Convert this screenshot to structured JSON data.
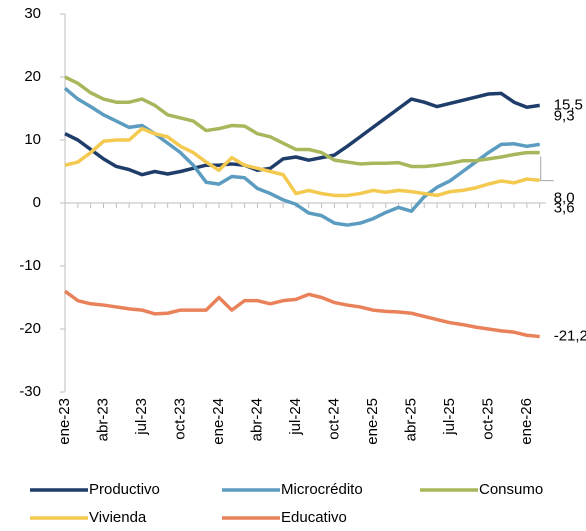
{
  "chart_data": {
    "type": "line",
    "categories": [
      "ene-23",
      null,
      null,
      "abr-23",
      null,
      null,
      "jul-23",
      null,
      null,
      "oct-23",
      null,
      null,
      "ene-24",
      null,
      null,
      "abr-24",
      null,
      null,
      "jul-24",
      null,
      null,
      "oct-24",
      null,
      null,
      "ene-25",
      null,
      null,
      "abr-25",
      null,
      null,
      "jul-25",
      null,
      null,
      "oct-25",
      null,
      null,
      "ene-26",
      null
    ],
    "ylim": [
      -30,
      30
    ],
    "yticks": [
      -30,
      -20,
      -10,
      0,
      10,
      20,
      30
    ],
    "series": [
      {
        "name": "Productivo",
        "color": "#1f3d6b",
        "values": [
          11,
          10,
          8.5,
          7,
          5.8,
          5.3,
          4.5,
          5,
          4.6,
          5,
          5.5,
          6,
          6,
          6.2,
          6,
          5.2,
          5.5,
          7,
          7.3,
          6.8,
          7.2,
          7.6,
          9,
          10.5,
          12,
          13.5,
          15,
          16.5,
          16,
          15.3,
          15.8,
          16.3,
          16.8,
          17.3,
          17.4,
          16,
          15.2,
          15.5
        ],
        "value_labels": [
          null,
          null,
          null,
          null,
          null,
          null,
          null,
          null,
          null,
          null,
          null,
          null,
          null,
          null,
          null,
          null,
          null,
          null,
          null,
          null,
          null,
          null,
          null,
          null,
          null,
          null,
          null,
          null,
          null,
          null,
          null,
          null,
          null,
          null,
          null,
          null,
          null,
          "15,5"
        ]
      },
      {
        "name": "Microcrédito",
        "color": "#5b9cc0",
        "values": [
          18.2,
          16.5,
          15.3,
          14,
          13,
          12,
          12.3,
          11,
          9.5,
          8,
          6,
          3.3,
          3,
          4.2,
          4,
          2.3,
          1.5,
          0.5,
          -0.2,
          -1.6,
          -2,
          -3.2,
          -3.5,
          -3.2,
          -2.5,
          -1.5,
          -0.7,
          -1.3,
          1,
          2.5,
          3.5,
          5,
          6.5,
          8,
          9.3,
          9.4,
          9,
          9.3
        ],
        "value_labels": [
          null,
          null,
          null,
          null,
          null,
          null,
          null,
          null,
          null,
          null,
          null,
          null,
          null,
          null,
          null,
          null,
          null,
          null,
          null,
          null,
          null,
          null,
          null,
          null,
          null,
          null,
          null,
          null,
          null,
          null,
          null,
          null,
          null,
          null,
          null,
          null,
          null,
          "9,3"
        ]
      },
      {
        "name": "Consumo",
        "color": "#a9b75c",
        "values": [
          20,
          19,
          17.5,
          16.5,
          16,
          16,
          16.5,
          15.5,
          14,
          13.5,
          13,
          11.5,
          11.8,
          12.3,
          12.2,
          11,
          10.5,
          9.5,
          8.5,
          8.5,
          8,
          6.8,
          6.5,
          6.2,
          6.3,
          6.3,
          6.4,
          5.8,
          5.8,
          6,
          6.3,
          6.7,
          6.7,
          7,
          7.3,
          7.7,
          8,
          8.0
        ],
        "value_labels": [
          null,
          null,
          null,
          null,
          null,
          null,
          null,
          null,
          null,
          null,
          null,
          null,
          null,
          null,
          null,
          null,
          null,
          null,
          null,
          null,
          null,
          null,
          null,
          null,
          null,
          null,
          null,
          null,
          null,
          null,
          null,
          null,
          null,
          null,
          null,
          null,
          null,
          "8,0"
        ]
      },
      {
        "name": "Vivienda",
        "color": "#f3c94f",
        "values": [
          6,
          6.5,
          8,
          9.8,
          10,
          10,
          11.8,
          11,
          10.5,
          9,
          8,
          6.5,
          5.2,
          7.2,
          6,
          5.5,
          5,
          4.5,
          1.5,
          2,
          1.5,
          1.2,
          1.2,
          1.5,
          2,
          1.7,
          2,
          1.8,
          1.5,
          1.2,
          1.8,
          2,
          2.4,
          3,
          3.5,
          3.2,
          3.8,
          3.6
        ],
        "value_labels": [
          null,
          null,
          null,
          null,
          null,
          null,
          null,
          null,
          null,
          null,
          null,
          null,
          null,
          null,
          null,
          null,
          null,
          null,
          null,
          null,
          null,
          null,
          null,
          null,
          null,
          null,
          null,
          null,
          null,
          null,
          null,
          null,
          null,
          null,
          null,
          null,
          null,
          "3,6"
        ]
      },
      {
        "name": "Educativo",
        "color": "#e9825a",
        "values": [
          -14,
          -15.5,
          -16,
          -16.2,
          -16.5,
          -16.8,
          -17,
          -17.6,
          -17.5,
          -17,
          -17,
          -17,
          -15,
          -17,
          -15.5,
          -15.5,
          -16,
          -15.5,
          -15.3,
          -14.5,
          -15,
          -15.8,
          -16.2,
          -16.5,
          -17,
          -17.2,
          -17.3,
          -17.5,
          -18,
          -18.5,
          -19,
          -19.3,
          -19.7,
          -20,
          -20.3,
          -20.5,
          -21,
          -21.2
        ],
        "value_labels": [
          null,
          null,
          null,
          null,
          null,
          null,
          null,
          null,
          null,
          null,
          null,
          null,
          null,
          null,
          null,
          null,
          null,
          null,
          null,
          null,
          null,
          null,
          null,
          null,
          null,
          null,
          null,
          null,
          null,
          null,
          null,
          null,
          null,
          null,
          null,
          null,
          null,
          "-21,2"
        ]
      }
    ]
  }
}
